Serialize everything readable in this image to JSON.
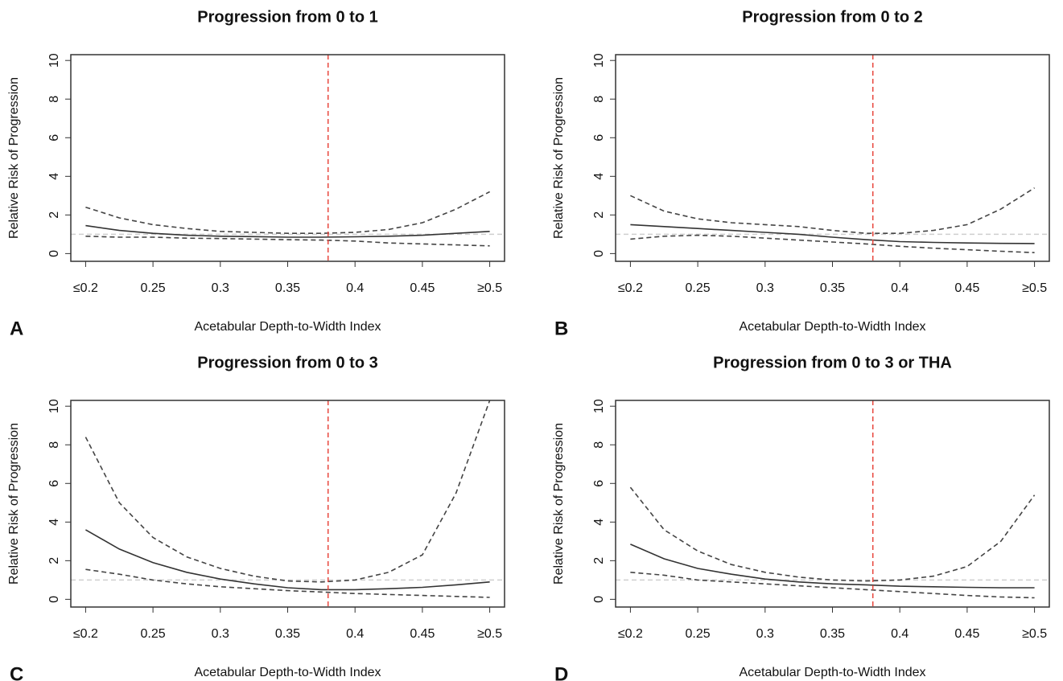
{
  "chart_data": [
    {
      "type": "line",
      "title": "Progression from 0 to  1",
      "panel_label": "A",
      "xlabel": "Acetabular Depth-to-Width Index",
      "ylabel": "Relative Risk of Progression",
      "x": [
        0.2,
        0.225,
        0.25,
        0.275,
        0.3,
        0.325,
        0.35,
        0.375,
        0.4,
        0.425,
        0.45,
        0.475,
        0.5
      ],
      "series": [
        {
          "color": "#333333",
          "style": "solid",
          "values": [
            1.45,
            1.2,
            1.05,
            0.95,
            0.9,
            0.88,
            0.85,
            0.85,
            0.87,
            0.9,
            0.95,
            1.05,
            1.15
          ]
        },
        {
          "color": "#444444",
          "style": "dashed",
          "values": [
            2.4,
            1.85,
            1.5,
            1.3,
            1.15,
            1.1,
            1.05,
            1.05,
            1.1,
            1.25,
            1.6,
            2.3,
            3.2
          ]
        },
        {
          "color": "#444444",
          "style": "dashed",
          "values": [
            0.9,
            0.85,
            0.85,
            0.8,
            0.78,
            0.75,
            0.72,
            0.7,
            0.65,
            0.55,
            0.5,
            0.45,
            0.4
          ]
        }
      ],
      "hline": 1,
      "hline_color": "#cfcfcf",
      "vline": 0.38,
      "vline_color": "#e8463c",
      "xlim": [
        0.189,
        0.511
      ],
      "ylim": [
        -0.4,
        10.3
      ],
      "xticks": [
        {
          "value": 0.2,
          "label": "≤0.2"
        },
        0.25,
        0.3,
        0.35,
        0.4,
        0.45,
        {
          "value": 0.5,
          "label": "≥0.5"
        }
      ],
      "yticks": [
        0,
        2,
        4,
        6,
        8,
        10
      ]
    },
    {
      "type": "line",
      "title": "Progression from 0 to  2",
      "panel_label": "B",
      "xlabel": "Acetabular Depth-to-Width Index",
      "ylabel": "Relative Risk of Progression",
      "x": [
        0.2,
        0.225,
        0.25,
        0.275,
        0.3,
        0.325,
        0.35,
        0.375,
        0.4,
        0.425,
        0.45,
        0.475,
        0.5
      ],
      "series": [
        {
          "color": "#333333",
          "style": "solid",
          "values": [
            1.5,
            1.4,
            1.3,
            1.2,
            1.1,
            1.0,
            0.85,
            0.72,
            0.62,
            0.58,
            0.55,
            0.53,
            0.52
          ]
        },
        {
          "color": "#444444",
          "style": "dashed",
          "values": [
            3.0,
            2.2,
            1.8,
            1.6,
            1.5,
            1.4,
            1.2,
            1.05,
            1.05,
            1.2,
            1.5,
            2.3,
            3.4
          ]
        },
        {
          "color": "#444444",
          "style": "dashed",
          "values": [
            0.75,
            0.9,
            0.95,
            0.9,
            0.8,
            0.7,
            0.6,
            0.5,
            0.38,
            0.28,
            0.2,
            0.12,
            0.05
          ]
        }
      ],
      "hline": 1,
      "hline_color": "#cfcfcf",
      "vline": 0.38,
      "vline_color": "#e8463c",
      "xlim": [
        0.189,
        0.511
      ],
      "ylim": [
        -0.4,
        10.3
      ],
      "xticks": [
        {
          "value": 0.2,
          "label": "≤0.2"
        },
        0.25,
        0.3,
        0.35,
        0.4,
        0.45,
        {
          "value": 0.5,
          "label": "≥0.5"
        }
      ],
      "yticks": [
        0,
        2,
        4,
        6,
        8,
        10
      ]
    },
    {
      "type": "line",
      "title": "Progression from 0 to  3",
      "panel_label": "C",
      "xlabel": "Acetabular Depth-to-Width Index",
      "ylabel": "Relative Risk of Progression",
      "x": [
        0.2,
        0.225,
        0.25,
        0.275,
        0.3,
        0.325,
        0.35,
        0.375,
        0.4,
        0.425,
        0.45,
        0.475,
        0.5
      ],
      "series": [
        {
          "color": "#333333",
          "style": "solid",
          "values": [
            3.6,
            2.6,
            1.9,
            1.4,
            1.05,
            0.8,
            0.6,
            0.5,
            0.5,
            0.55,
            0.62,
            0.75,
            0.9
          ]
        },
        {
          "color": "#444444",
          "style": "dashed",
          "values": [
            8.4,
            5.0,
            3.2,
            2.2,
            1.6,
            1.2,
            0.95,
            0.9,
            1.0,
            1.4,
            2.3,
            5.5,
            10.3
          ]
        },
        {
          "color": "#444444",
          "style": "dashed",
          "values": [
            1.55,
            1.3,
            1.0,
            0.8,
            0.65,
            0.55,
            0.45,
            0.38,
            0.3,
            0.25,
            0.2,
            0.15,
            0.1
          ]
        }
      ],
      "hline": 1,
      "hline_color": "#cfcfcf",
      "vline": 0.38,
      "vline_color": "#e8463c",
      "xlim": [
        0.189,
        0.511
      ],
      "ylim": [
        -0.4,
        10.3
      ],
      "xticks": [
        {
          "value": 0.2,
          "label": "≤0.2"
        },
        0.25,
        0.3,
        0.35,
        0.4,
        0.45,
        {
          "value": 0.5,
          "label": "≥0.5"
        }
      ],
      "yticks": [
        0,
        2,
        4,
        6,
        8,
        10
      ]
    },
    {
      "type": "line",
      "title": "Progression from 0 to  3 or THA",
      "panel_label": "D",
      "xlabel": "Acetabular Depth-to-Width Index",
      "ylabel": "Relative Risk of Progression",
      "x": [
        0.2,
        0.225,
        0.25,
        0.275,
        0.3,
        0.325,
        0.35,
        0.375,
        0.4,
        0.425,
        0.45,
        0.475,
        0.5
      ],
      "series": [
        {
          "color": "#333333",
          "style": "solid",
          "values": [
            2.85,
            2.1,
            1.6,
            1.3,
            1.05,
            0.9,
            0.8,
            0.75,
            0.68,
            0.65,
            0.62,
            0.6,
            0.6
          ]
        },
        {
          "color": "#444444",
          "style": "dashed",
          "values": [
            5.8,
            3.6,
            2.5,
            1.8,
            1.4,
            1.15,
            1.0,
            0.95,
            1.0,
            1.2,
            1.7,
            3.0,
            5.4
          ]
        },
        {
          "color": "#444444",
          "style": "dashed",
          "values": [
            1.4,
            1.25,
            1.0,
            0.9,
            0.8,
            0.7,
            0.6,
            0.5,
            0.4,
            0.3,
            0.2,
            0.12,
            0.08
          ]
        }
      ],
      "hline": 1,
      "hline_color": "#cfcfcf",
      "vline": 0.38,
      "vline_color": "#e8463c",
      "xlim": [
        0.189,
        0.511
      ],
      "ylim": [
        -0.4,
        10.3
      ],
      "xticks": [
        {
          "value": 0.2,
          "label": "≤0.2"
        },
        0.25,
        0.3,
        0.35,
        0.4,
        0.45,
        {
          "value": 0.5,
          "label": "≥0.5"
        }
      ],
      "yticks": [
        0,
        2,
        4,
        6,
        8,
        10
      ]
    }
  ]
}
